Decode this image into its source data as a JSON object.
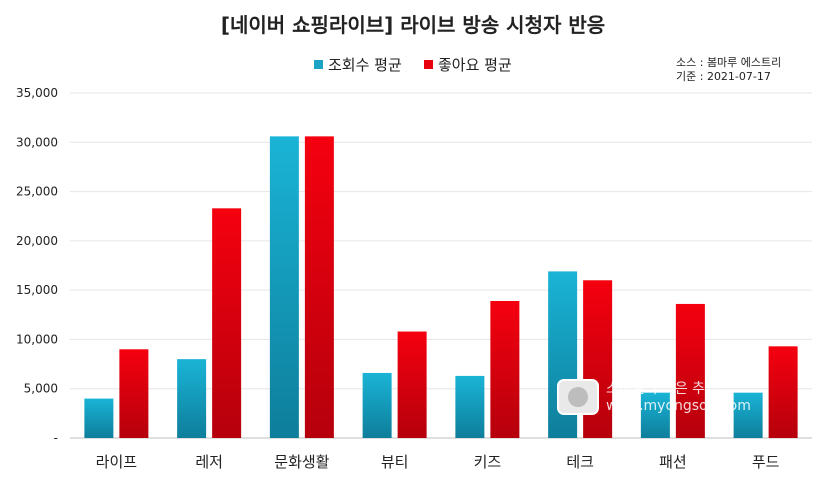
{
  "chart_data": {
    "type": "bar",
    "title": "[네이버 쇼핑라이브] 라이브 방송 시청자 반응",
    "categories": [
      "라이프",
      "레저",
      "문화생활",
      "뷰티",
      "키즈",
      "테크",
      "패션",
      "푸드"
    ],
    "series": [
      {
        "name": "조회수 평균",
        "values": [
          4000,
          8000,
          30600,
          6600,
          6300,
          16900,
          4600,
          4600
        ],
        "color": "#1aa3c4"
      },
      {
        "name": "좋아요 평균",
        "values": [
          9000,
          23300,
          30600,
          10800,
          13900,
          16000,
          13600,
          9300
        ],
        "color": "#e8000f"
      }
    ],
    "ylim": [
      0,
      35000
    ],
    "yticks": [
      0,
      5000,
      10000,
      15000,
      20000,
      25000,
      30000,
      35000
    ],
    "ytick_labels": [
      "-",
      "5,000",
      "10,000",
      "15,000",
      "20,000",
      "25,000",
      "30,000",
      "35,000"
    ],
    "grid": true,
    "legend": "top-center",
    "xlabel": "",
    "ylabel": ""
  },
  "source": {
    "line1": "소스 : 봄마루 에스트리",
    "line2": "기준 : 2021-07-17"
  },
  "watermark": {
    "line1": "스마일의 작은 추억",
    "line2": "www.myongsob.com"
  }
}
